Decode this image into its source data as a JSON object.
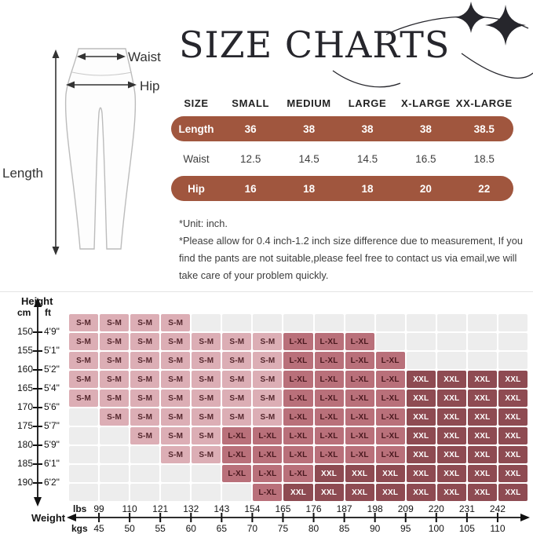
{
  "title": "SIZE CHARTS",
  "measurement_diagram": {
    "length_label": "Length",
    "waist_label": "Waist",
    "hip_label": "Hip"
  },
  "size_table": {
    "headers": [
      "SIZE",
      "SMALL",
      "MEDIUM",
      "LARGE",
      "X-LARGE",
      "XX-LARGE"
    ],
    "rows": [
      {
        "label": "Length",
        "values": [
          "36",
          "38",
          "38",
          "38",
          "38.5"
        ],
        "highlighted": true
      },
      {
        "label": "Waist",
        "values": [
          "12.5",
          "14.5",
          "14.5",
          "16.5",
          "18.5"
        ],
        "highlighted": false
      },
      {
        "label": "Hip",
        "values": [
          "16",
          "18",
          "18",
          "20",
          "22"
        ],
        "highlighted": true
      }
    ],
    "highlight_color": "#a0563e"
  },
  "notes": {
    "unit": "*Unit: inch.",
    "disclaimer": "*Please allow for 0.4 inch-1.2 inch size difference due to measurement,   If you find the pants are not suitable,please feel free to contact us via email,we will take care of your problem quickly."
  },
  "chart_data": {
    "type": "heatmap",
    "title": "Height / Weight size recommendation grid",
    "x_axis": {
      "label": "Weight",
      "unit_top": "lbs",
      "unit_bottom": "kgs",
      "lbs": [
        99,
        110,
        121,
        132,
        143,
        154,
        165,
        176,
        187,
        198,
        209,
        220,
        231,
        242
      ],
      "kgs": [
        45,
        50,
        55,
        60,
        65,
        70,
        75,
        80,
        85,
        90,
        95,
        100,
        105,
        110
      ]
    },
    "y_axis": {
      "label": "Height",
      "unit_left": "cm",
      "unit_right": "ft",
      "cm": [
        150,
        155,
        160,
        165,
        170,
        175,
        180,
        185,
        190
      ],
      "ft": [
        "4'9\"",
        "5'1\"",
        "5'2\"",
        "5'4\"",
        "5'6\"",
        "5'7\"",
        "5'9\"",
        "6'1\"",
        "6'2\""
      ]
    },
    "sizes": [
      "S-M",
      "L-XL",
      "XXL"
    ],
    "colors": {
      "S-M": "#dcaeb5",
      "L-XL": "#b9707a",
      "XXL": "#8e4b52",
      "empty": "#ededed"
    },
    "grid": [
      [
        "S-M",
        "S-M",
        "S-M",
        "S-M",
        "",
        "",
        "",
        "",
        "",
        "",
        "",
        "",
        "",
        "",
        ""
      ],
      [
        "S-M",
        "S-M",
        "S-M",
        "S-M",
        "S-M",
        "S-M",
        "S-M",
        "L-XL",
        "L-XL",
        "L-XL",
        "",
        "",
        "",
        "",
        ""
      ],
      [
        "S-M",
        "S-M",
        "S-M",
        "S-M",
        "S-M",
        "S-M",
        "S-M",
        "L-XL",
        "L-XL",
        "L-XL",
        "L-XL",
        "",
        "",
        "",
        ""
      ],
      [
        "S-M",
        "S-M",
        "S-M",
        "S-M",
        "S-M",
        "S-M",
        "S-M",
        "L-XL",
        "L-XL",
        "L-XL",
        "L-XL",
        "XXL",
        "XXL",
        "XXL",
        "XXL"
      ],
      [
        "S-M",
        "S-M",
        "S-M",
        "S-M",
        "S-M",
        "S-M",
        "S-M",
        "L-XL",
        "L-XL",
        "L-XL",
        "L-XL",
        "XXL",
        "XXL",
        "XXL",
        "XXL"
      ],
      [
        "",
        "S-M",
        "S-M",
        "S-M",
        "S-M",
        "S-M",
        "S-M",
        "L-XL",
        "L-XL",
        "L-XL",
        "L-XL",
        "XXL",
        "XXL",
        "XXL",
        "XXL"
      ],
      [
        "",
        "",
        "S-M",
        "S-M",
        "S-M",
        "L-XL",
        "L-XL",
        "L-XL",
        "L-XL",
        "L-XL",
        "L-XL",
        "XXL",
        "XXL",
        "XXL",
        "XXL"
      ],
      [
        "",
        "",
        "",
        "S-M",
        "S-M",
        "L-XL",
        "L-XL",
        "L-XL",
        "L-XL",
        "L-XL",
        "L-XL",
        "XXL",
        "XXL",
        "XXL",
        "XXL"
      ],
      [
        "",
        "",
        "",
        "",
        "",
        "L-XL",
        "L-XL",
        "L-XL",
        "XXL",
        "XXL",
        "XXL",
        "XXL",
        "XXL",
        "XXL",
        "XXL"
      ],
      [
        "",
        "",
        "",
        "",
        "",
        "",
        "L-XL",
        "XXL",
        "XXL",
        "XXL",
        "XXL",
        "XXL",
        "XXL",
        "XXL",
        "XXL"
      ]
    ]
  }
}
